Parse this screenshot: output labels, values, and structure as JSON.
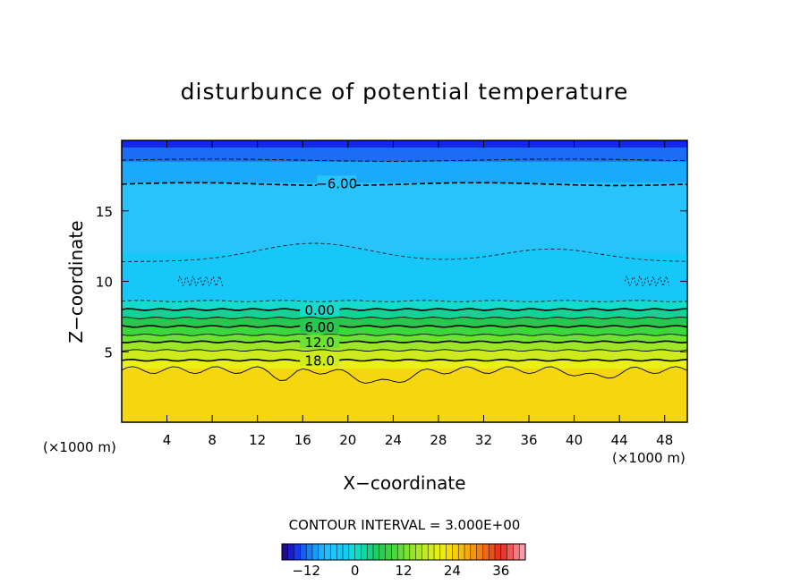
{
  "chart_data": {
    "type": "heatmap",
    "title": "disturbunce of potential temperature",
    "xlabel": "X−coordinate",
    "ylabel": "Z−coordinate",
    "x_unit": "(×1000 m)",
    "z_unit": "(×1000 m)",
    "xlim": [
      0,
      50
    ],
    "ylim": [
      0,
      20
    ],
    "x_ticks": [
      "4",
      "8",
      "12",
      "16",
      "20",
      "24",
      "28",
      "32",
      "36",
      "40",
      "44",
      "48"
    ],
    "x_tick_values": [
      4,
      8,
      12,
      16,
      20,
      24,
      28,
      32,
      36,
      40,
      44,
      48
    ],
    "y_ticks": [
      "5",
      "10",
      "15"
    ],
    "y_tick_values": [
      5,
      10,
      15
    ],
    "contour_interval_text": "CONTOUR INTERVAL = 3.000E+00",
    "contour_interval": 3.0,
    "contour_labels": [
      {
        "text": "−6.00",
        "value": -6,
        "x": 19,
        "z": 17.0
      },
      {
        "text": "0.00",
        "value": 0,
        "x": 17.5,
        "z": 8.0
      },
      {
        "text": "6.00",
        "value": 6,
        "x": 17.5,
        "z": 6.8
      },
      {
        "text": "12.0",
        "value": 12,
        "x": 17.5,
        "z": 5.7
      },
      {
        "text": "18.0",
        "value": 18,
        "x": 17.5,
        "z": 4.4
      }
    ],
    "value_bands": [
      {
        "z": [
          19.5,
          20
        ],
        "value": -15
      },
      {
        "z": [
          18.5,
          19.5
        ],
        "value": -12
      },
      {
        "z": [
          17.0,
          18.5
        ],
        "value": -9
      },
      {
        "z": [
          12.0,
          17.0
        ],
        "value": -6
      },
      {
        "z": [
          8.6,
          12.0
        ],
        "value": -3
      },
      {
        "z": [
          8.0,
          8.6
        ],
        "value": 0
      },
      {
        "z": [
          7.4,
          8.0
        ],
        "value": 3
      },
      {
        "z": [
          6.8,
          7.4
        ],
        "value": 6
      },
      {
        "z": [
          6.2,
          6.8
        ],
        "value": 9
      },
      {
        "z": [
          5.7,
          6.2
        ],
        "value": 12
      },
      {
        "z": [
          5.1,
          5.7
        ],
        "value": 15
      },
      {
        "z": [
          4.4,
          5.1
        ],
        "value": 18
      },
      {
        "z": [
          3.8,
          4.4
        ],
        "value": 21
      },
      {
        "z": [
          0,
          3.8
        ],
        "value": 24
      }
    ],
    "colorbar": {
      "range": [
        -18,
        42
      ],
      "ticks": [
        "−12",
        "0",
        "12",
        "24",
        "36"
      ],
      "tick_values": [
        -12,
        0,
        12,
        24,
        36
      ]
    }
  }
}
